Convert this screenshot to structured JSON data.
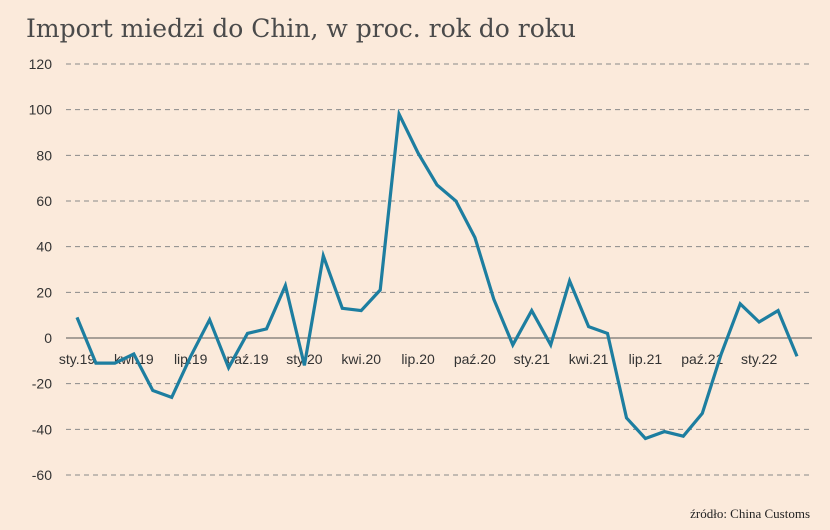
{
  "chart_data": {
    "type": "line",
    "title": "Import miedzi do Chin, w proc. rok do roku",
    "source": "źródło: China Customs",
    "ylim": [
      -60,
      120
    ],
    "yticks": [
      -60,
      -40,
      -20,
      0,
      20,
      40,
      60,
      80,
      100,
      120
    ],
    "grid": true,
    "line_color": "#1d7ea0",
    "x_labels": [
      {
        "index": 0,
        "label": "sty.19"
      },
      {
        "index": 3,
        "label": "kwi.19"
      },
      {
        "index": 6,
        "label": "lip.19"
      },
      {
        "index": 9,
        "label": "paź.19"
      },
      {
        "index": 12,
        "label": "sty.20"
      },
      {
        "index": 15,
        "label": "kwi.20"
      },
      {
        "index": 18,
        "label": "lip.20"
      },
      {
        "index": 21,
        "label": "paź.20"
      },
      {
        "index": 24,
        "label": "sty.21"
      },
      {
        "index": 27,
        "label": "kwi.21"
      },
      {
        "index": 30,
        "label": "lip.21"
      },
      {
        "index": 33,
        "label": "paź.21"
      },
      {
        "index": 36,
        "label": "sty.22"
      }
    ],
    "series": [
      {
        "values": [
          9,
          -11,
          -11,
          -7,
          -23,
          -26,
          -8,
          8,
          -13,
          2,
          4,
          23,
          -12,
          36,
          13,
          12,
          21,
          98,
          81,
          67,
          60,
          44,
          17,
          -3,
          12,
          -3,
          25,
          5,
          2,
          -35,
          -44,
          -41,
          -43,
          -33,
          -7,
          15,
          7,
          12,
          -8
        ]
      }
    ]
  }
}
